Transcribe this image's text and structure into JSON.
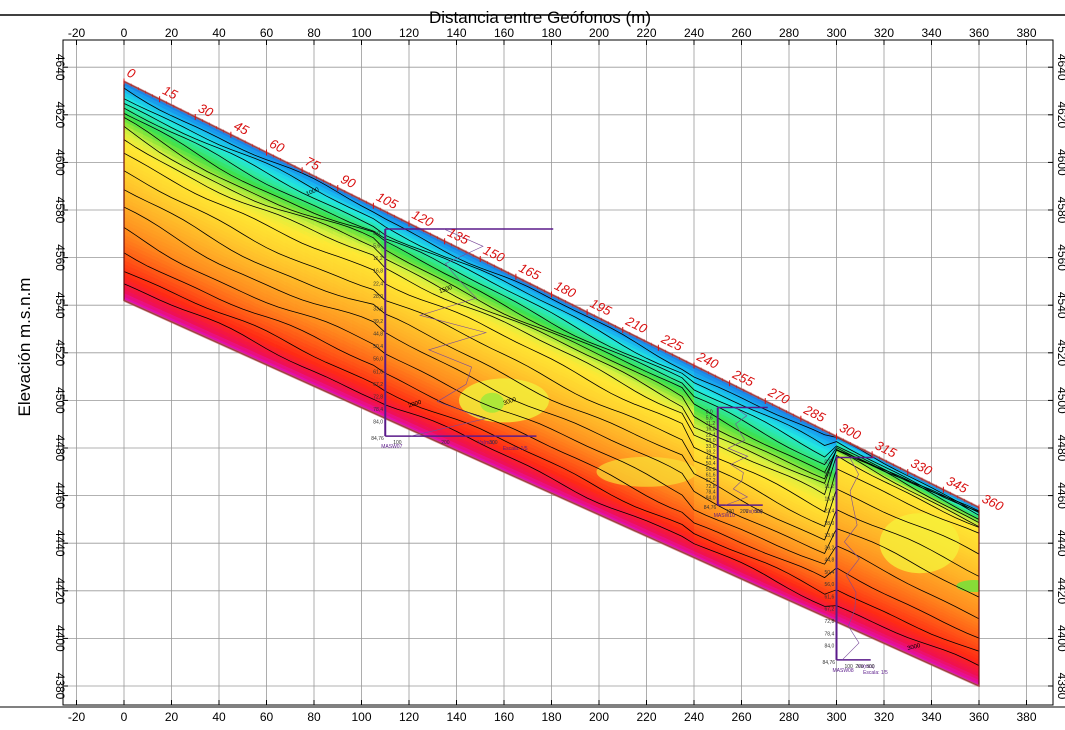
{
  "chart_data": {
    "type": "heatmap",
    "title": "Distancia entre Geófonos (m)",
    "xlabel": "Distancia entre Geófonos (m)",
    "ylabel": "Elevación m.s.n.m",
    "xlim": [
      -30,
      390
    ],
    "ylim": [
      4373,
      4650
    ],
    "x_ticks": [
      -20,
      0,
      20,
      40,
      60,
      80,
      100,
      120,
      140,
      160,
      180,
      200,
      220,
      240,
      260,
      280,
      300,
      320,
      340,
      360,
      380
    ],
    "y_ticks": [
      4380,
      4400,
      4420,
      4440,
      4460,
      4480,
      4500,
      4520,
      4540,
      4560,
      4580,
      4600,
      4620,
      4640
    ],
    "grid": true,
    "surface": [
      [
        0,
        4634
      ],
      [
        360,
        4455
      ]
    ],
    "bottom": [
      [
        0,
        4542
      ],
      [
        360,
        4380
      ]
    ],
    "geophones": [
      "0",
      "15",
      "30",
      "45",
      "60",
      "75",
      "90",
      "105",
      "120",
      "135",
      "150",
      "165",
      "180",
      "195",
      "210",
      "225",
      "240",
      "255",
      "270",
      "285",
      "300",
      "315",
      "330",
      "345",
      "360"
    ],
    "geophone_spacing": 15,
    "contour_labels": [
      "1000",
      "1500",
      "2000",
      "3000",
      "3000"
    ],
    "masw_labels": {
      "masw1": "MASW07",
      "masw2": "MASW10",
      "masw3": "MASW08",
      "vs": "Vs(m/s)",
      "escala": "Escala: 1/5",
      "depth_max1": "84,76",
      "depth_max2": "84,76",
      "depth_max3": "84,76"
    }
  }
}
